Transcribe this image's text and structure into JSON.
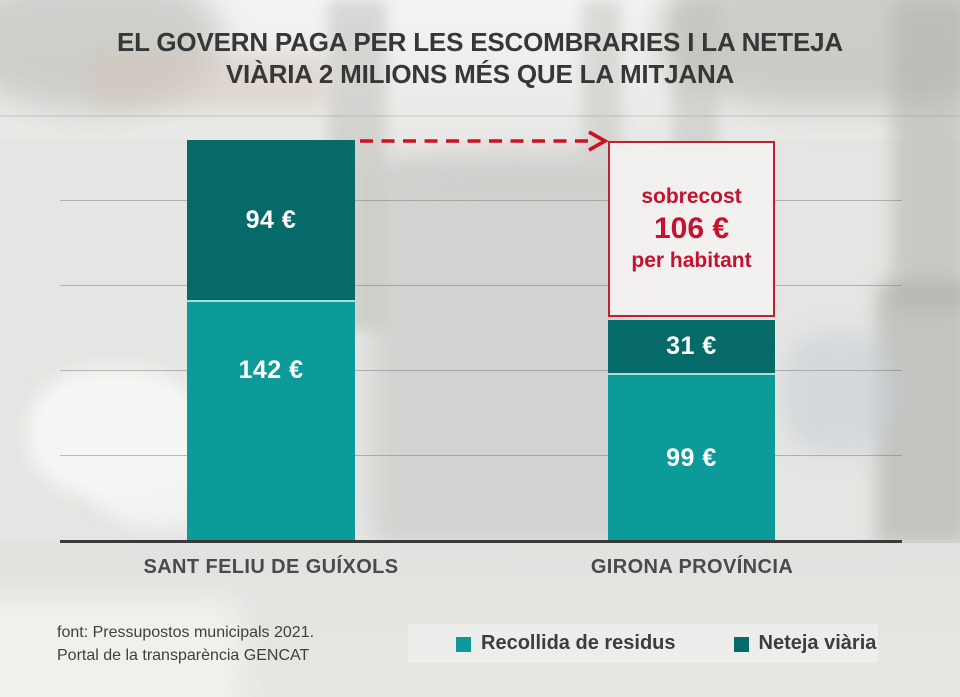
{
  "title": {
    "line1": "EL GOVERN PAGA PER LES ESCOMBRARIES I LA NETEJA",
    "line2": "VIÀRIA 2 MILIONS MÉS QUE LA MITJANA"
  },
  "chart_data": {
    "type": "bar",
    "stacked": true,
    "categories": [
      "SANT FELIU DE GUÍXOLS",
      "GIRONA PROVÍNCIA"
    ],
    "series": [
      {
        "name": "Recollida de residus",
        "color": "#0d9b99",
        "values": [
          142,
          99
        ],
        "labels": [
          "142 €",
          "99 €"
        ]
      },
      {
        "name": "Neteja viària",
        "color": "#066a68",
        "values": [
          94,
          31
        ],
        "labels": [
          "94 €",
          "31 €"
        ]
      }
    ],
    "totals": [
      236,
      130
    ],
    "units": "€ per habitant",
    "ylim": [
      0,
      250
    ],
    "gridline_step": 50,
    "grid": true,
    "legend_position": "bottom-right",
    "annotation": {
      "label_top": "sobrecost",
      "value": "106 €",
      "label_bottom": "per habitant",
      "color": "#c41230"
    }
  },
  "footer": {
    "line1": "font: Pressupostos municipals 2021.",
    "line2": "Portal de la transparència GENCAT"
  },
  "colors": {
    "recollida_teal": "#0d9b99",
    "neteja_dark_teal": "#066a68",
    "alert_red": "#c41230",
    "title_text": "#373737"
  }
}
